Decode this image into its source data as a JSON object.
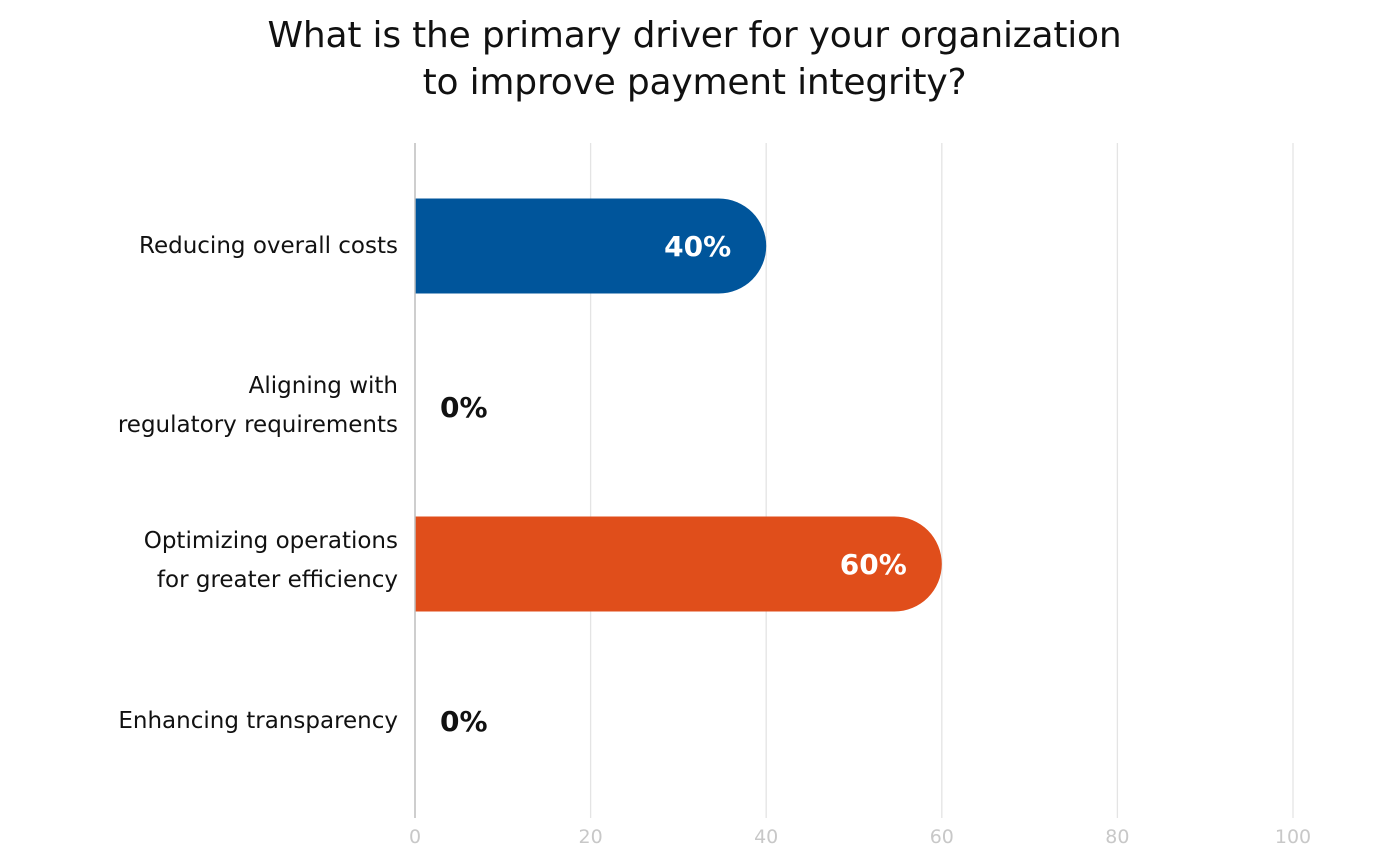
{
  "chart_data": {
    "type": "bar",
    "orientation": "horizontal",
    "title_lines": [
      "What is the primary driver for your organization",
      "to improve payment integrity?"
    ],
    "categories": [
      [
        "Reducing overall costs"
      ],
      [
        "Aligning with",
        "regulatory requirements"
      ],
      [
        "Optimizing operations",
        "for greater efficiency"
      ],
      [
        "Enhancing transparency"
      ]
    ],
    "values": [
      40,
      0,
      60,
      0
    ],
    "value_labels": [
      "40%",
      "0%",
      "60%",
      "0%"
    ],
    "bar_colors": [
      "#00559B",
      "#00559B",
      "#E04E1B",
      "#E04E1B"
    ],
    "xlim": [
      0,
      100
    ],
    "xticks": [
      0,
      20,
      40,
      60,
      80,
      100
    ],
    "xtick_labels": [
      "0",
      "20",
      "40",
      "60",
      "80",
      "100"
    ],
    "grid": true,
    "legend": "none",
    "colors": {
      "grid": "#E4E4E4",
      "axis": "#BDBDBD",
      "tick_text": "#C8C8C8",
      "label_inside": "#FFFFFF",
      "label_outside": "#111111"
    }
  }
}
